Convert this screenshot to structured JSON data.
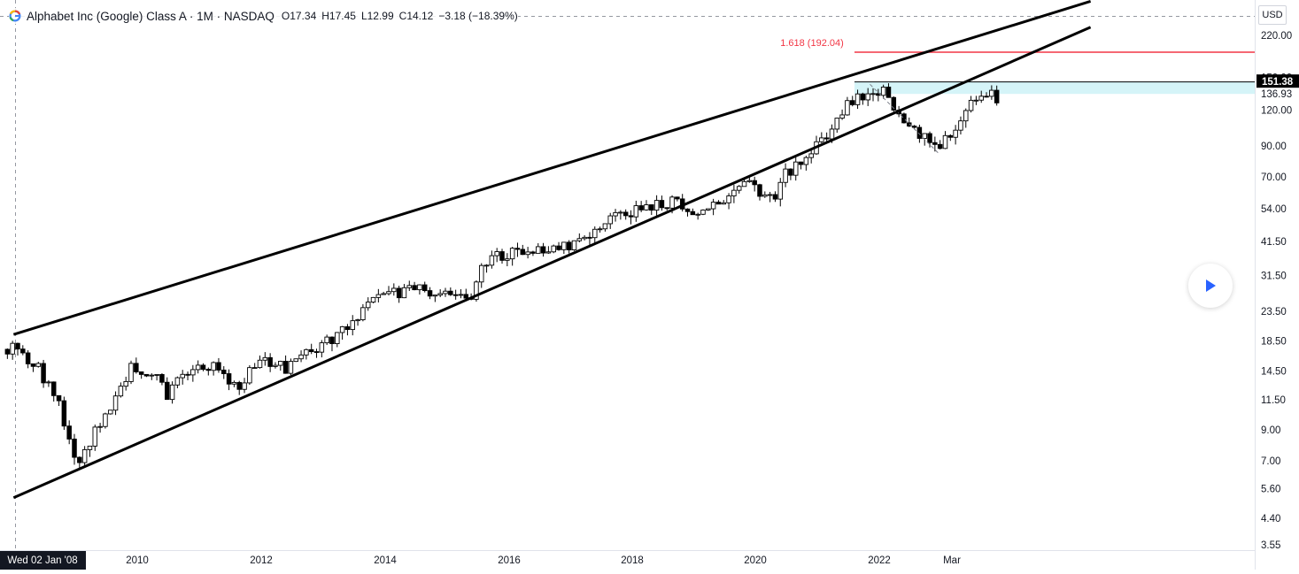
{
  "legend": {
    "title": "Alphabet Inc (Google) Class A · 1M · NASDAQ",
    "open": "O17.34",
    "high": "H17.45",
    "low": "L12.99",
    "close": "C14.12",
    "change": "−3.18 (−18.39%)"
  },
  "currency_label": "USD",
  "fib_label": "1.618 (192.04)",
  "price_badges": {
    "top": "151.38",
    "second": "136.93",
    "hidden": "150.00"
  },
  "crosshair_date": "Wed 02 Jan '08",
  "colors": {
    "fib_line": "#f23645",
    "channel": "#000000",
    "candle_up": "#ffffff",
    "candle_down": "#000000",
    "zone": "#b2ebf2"
  },
  "icons": {
    "logo": "google-icon",
    "play": "play-icon"
  },
  "chart_data": {
    "type": "candlestick",
    "title": "Alphabet Inc (Google) Class A · 1M · NASDAQ",
    "y_scale": "log",
    "ylim": [
      3.55,
      280
    ],
    "y_ticks": [
      "220.00",
      "150.00",
      "136.93",
      "120.00",
      "90.00",
      "70.00",
      "54.00",
      "41.50",
      "31.50",
      "23.50",
      "18.50",
      "14.50",
      "11.50",
      "9.00",
      "7.00",
      "5.60",
      "4.40",
      "3.55"
    ],
    "x_ticks": [
      "2010",
      "2012",
      "2014",
      "2016",
      "2018",
      "2020",
      "2022",
      "Mar"
    ],
    "series": [
      {
        "candles_year_close": [
          [
            "2008",
            17.3,
            7.7
          ],
          [
            "2009",
            7.7,
            15.5
          ],
          [
            "2010",
            15.5,
            14.8
          ],
          [
            "2011",
            14.8,
            16.2
          ],
          [
            "2012",
            16.2,
            17.7
          ],
          [
            "2013",
            17.7,
            28.0
          ],
          [
            "2014",
            28.0,
            26.5
          ],
          [
            "2015",
            26.5,
            38.9
          ],
          [
            "2016",
            38.9,
            39.6
          ],
          [
            "2017",
            39.6,
            52.7
          ],
          [
            "2018",
            52.7,
            52.2
          ],
          [
            "2019",
            52.2,
            67.0
          ],
          [
            "2020",
            67.0,
            87.6
          ],
          [
            "2021",
            87.6,
            144.7
          ],
          [
            "2022",
            144.7,
            88.2
          ],
          [
            "2023",
            88.2,
            128.0
          ]
        ]
      }
    ],
    "fib_level": {
      "label": "1.618 (192.04)",
      "value": 192.04
    },
    "resistance_zone": [
      136.93,
      151.38
    ],
    "channel": {
      "upper": [
        [
          "2008-01",
          19.5
        ],
        [
          "2025-06",
          290
        ]
      ],
      "lower": [
        [
          "2008-01",
          5.2
        ],
        [
          "2025-06",
          235
        ]
      ]
    }
  }
}
